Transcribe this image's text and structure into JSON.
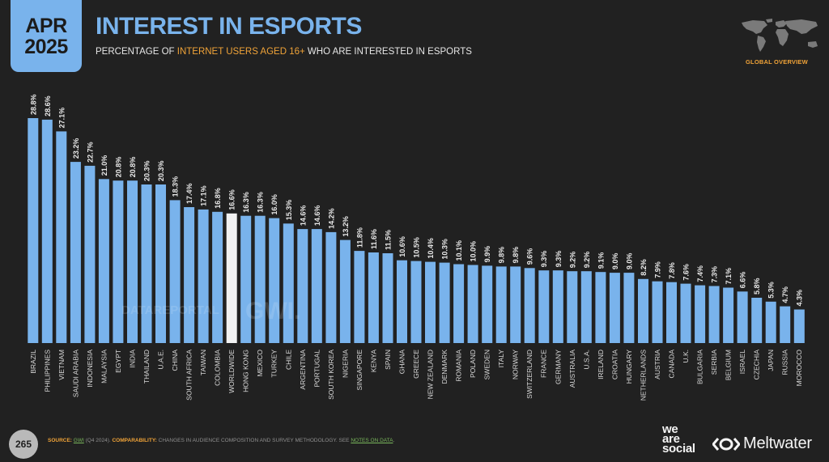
{
  "header": {
    "date_month": "APR",
    "date_year": "2025",
    "title": "INTEREST IN ESPORTS",
    "subtitle_pre": "PERCENTAGE OF ",
    "subtitle_highlight": "INTERNET USERS AGED 16+",
    "subtitle_post": " WHO ARE INTERESTED IN ESPORTS",
    "section_label": "GLOBAL OVERVIEW"
  },
  "colors": {
    "background": "#212121",
    "bar": "#79b3ec",
    "bar_highlight": "#f2f2f2",
    "accent": "#f0a338",
    "link": "#7ab85c"
  },
  "watermarks": {
    "left": "DATAREPORTAL",
    "right": "GWI."
  },
  "footer": {
    "page_number": "265",
    "source_label": "SOURCE:",
    "source_link": "GWI",
    "source_detail": " (Q4 2024). ",
    "comparability_label": "COMPARABILITY:",
    "comparability_text": " CHANGES IN AUDIENCE COMPOSITION AND SURVEY METHODOLOGY. SEE ",
    "notes_link": "NOTES ON DATA",
    "notes_end": ".",
    "brand_1": "we are social",
    "brand_1_lines": [
      "we",
      "are",
      "social"
    ],
    "brand_2": "Meltwater"
  },
  "chart_data": {
    "type": "bar",
    "title": "INTEREST IN ESPORTS",
    "subtitle": "PERCENTAGE OF INTERNET USERS AGED 16+ WHO ARE INTERESTED IN ESPORTS",
    "xlabel": "",
    "ylabel": "",
    "ylim": [
      0,
      30
    ],
    "grid": false,
    "value_suffix": "%",
    "highlight_category": "WORLDWIDE",
    "categories": [
      "BRAZIL",
      "PHILIPPINES",
      "VIETNAM",
      "SAUDI ARABIA",
      "INDONESIA",
      "MALAYSIA",
      "EGYPT",
      "INDIA",
      "THAILAND",
      "U.A.E.",
      "CHINA",
      "SOUTH AFRICA",
      "TAIWAN",
      "COLOMBIA",
      "WORLDWIDE",
      "HONG KONG",
      "MEXICO",
      "TURKEY",
      "CHILE",
      "ARGENTINA",
      "PORTUGAL",
      "SOUTH KOREA",
      "NIGERIA",
      "SINGAPORE",
      "KENYA",
      "SPAIN",
      "GHANA",
      "GREECE",
      "NEW ZEALAND",
      "DENMARK",
      "ROMANIA",
      "POLAND",
      "SWEDEN",
      "ITALY",
      "NORWAY",
      "SWITZERLAND",
      "FRANCE",
      "GERMANY",
      "AUSTRALIA",
      "U.S.A.",
      "IRELAND",
      "CROATIA",
      "HUNGARY",
      "NETHERLANDS",
      "AUSTRIA",
      "CANADA",
      "U.K.",
      "BULGARIA",
      "SERBIA",
      "BELGIUM",
      "ISRAEL",
      "CZECHIA",
      "JAPAN",
      "RUSSIA",
      "MOROCCO"
    ],
    "values": [
      28.8,
      28.6,
      27.1,
      23.2,
      22.7,
      21.0,
      20.8,
      20.8,
      20.3,
      20.3,
      18.3,
      17.4,
      17.1,
      16.8,
      16.6,
      16.3,
      16.3,
      16.0,
      15.3,
      14.6,
      14.6,
      14.2,
      13.2,
      11.8,
      11.6,
      11.5,
      10.6,
      10.5,
      10.4,
      10.3,
      10.1,
      10.0,
      9.9,
      9.8,
      9.8,
      9.6,
      9.3,
      9.3,
      9.2,
      9.2,
      9.1,
      9.0,
      9.0,
      8.2,
      7.9,
      7.8,
      7.6,
      7.4,
      7.3,
      7.1,
      6.6,
      5.8,
      5.3,
      4.7,
      4.3
    ]
  }
}
